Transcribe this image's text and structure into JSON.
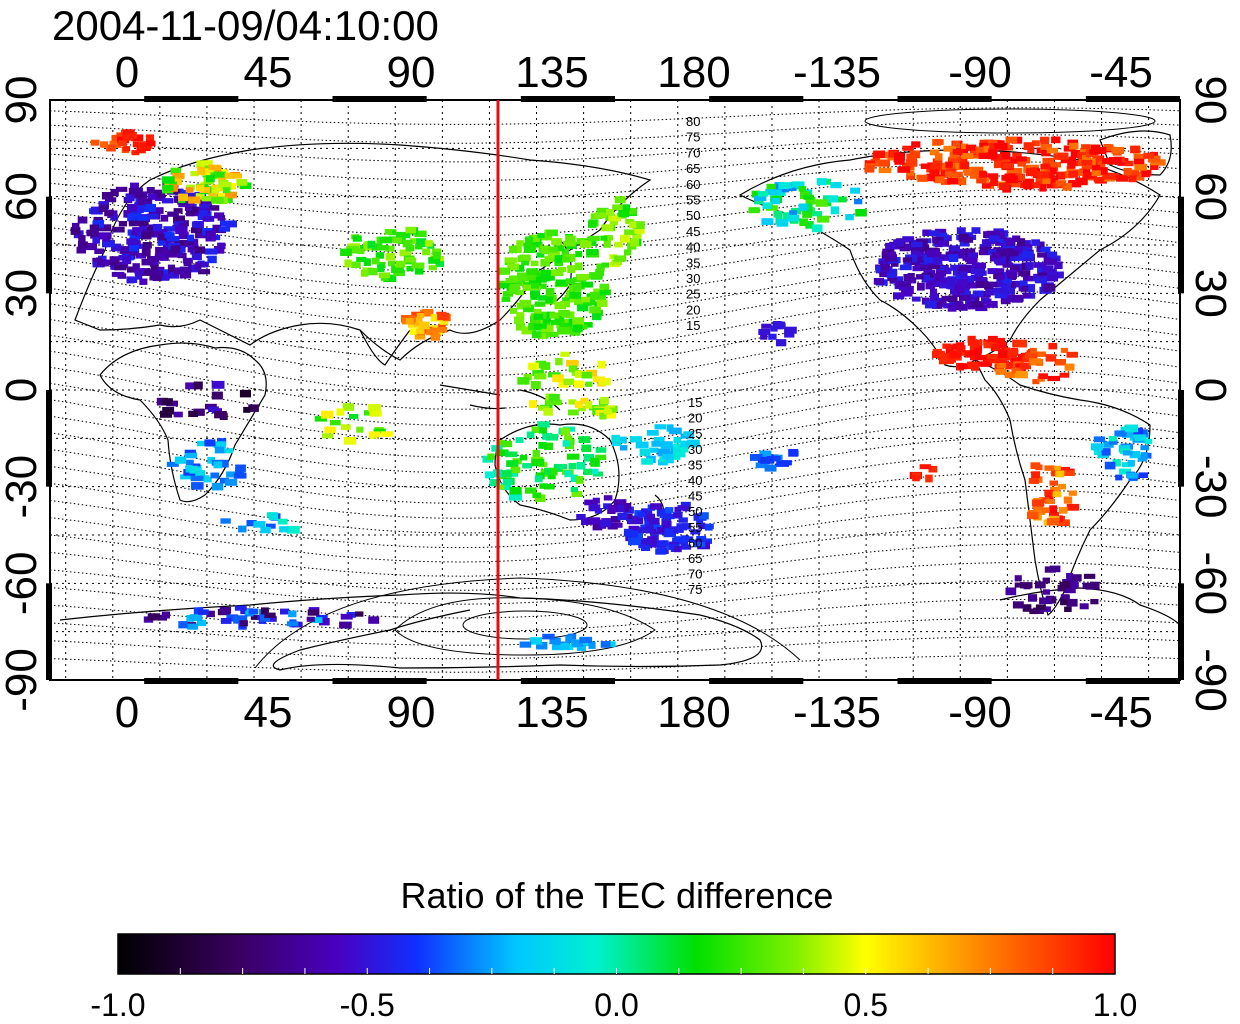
{
  "title": "2004-11-09/04:10:00",
  "map": {
    "lon_ticks_top": [
      "0",
      "45",
      "90",
      "135",
      "180",
      "-135",
      "-90",
      "-45"
    ],
    "lon_ticks_bottom": [
      "0",
      "45",
      "90",
      "135",
      "180",
      "-135",
      "-90",
      "-45"
    ],
    "lat_ticks_left": [
      "90",
      "60",
      "30",
      "0",
      "-30",
      "-60",
      "-90"
    ],
    "lat_ticks_right": [
      "90",
      "60",
      "30",
      "0",
      "-30",
      "-60",
      "-90"
    ],
    "contour_labels_north": [
      "80",
      "75",
      "70",
      "65",
      "60",
      "55",
      "50",
      "45",
      "40",
      "35",
      "30",
      "25",
      "20",
      "15"
    ],
    "contour_labels_south": [
      "15",
      "20",
      "25",
      "30",
      "35",
      "40",
      "45",
      "50",
      "55",
      "60",
      "65",
      "70",
      "75"
    ],
    "meridian_line_color": "#dd1111"
  },
  "colorbar": {
    "title": "Ratio of the TEC difference",
    "tick_labels": [
      "-1.0",
      "-0.5",
      "0.0",
      "0.5",
      "1.0"
    ],
    "range": [
      -1.0,
      1.0
    ]
  }
}
